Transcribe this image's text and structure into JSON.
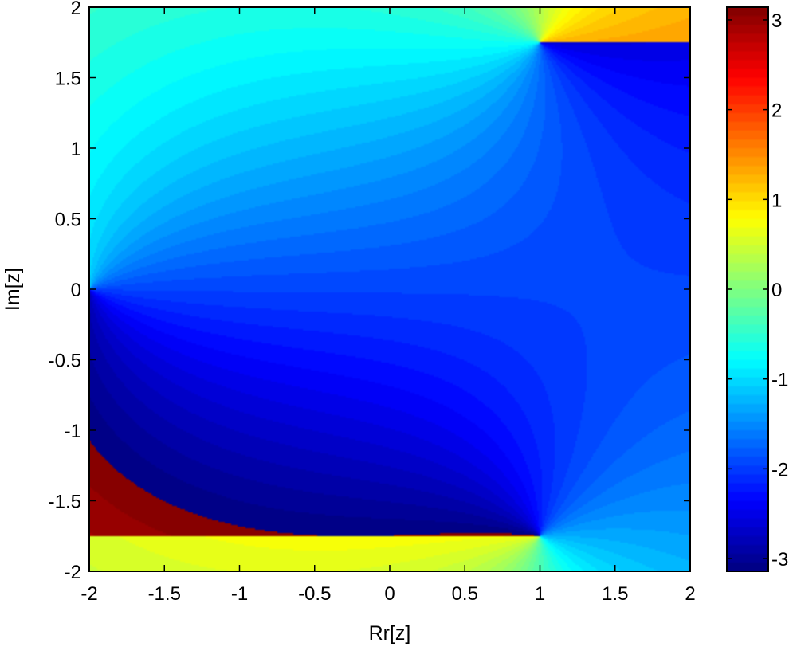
{
  "chart_data": {
    "type": "heatmap",
    "title": "",
    "xlabel": "Rr[z]",
    "ylabel": "Im[z]",
    "xlim": [
      -2,
      2
    ],
    "ylim": [
      -2,
      2
    ],
    "x_ticks": [
      -2,
      -1.5,
      -1,
      -0.5,
      0,
      0.5,
      1,
      1.5,
      2
    ],
    "x_tick_labels": [
      "-2",
      "-1.5",
      "-1",
      "-0.5",
      "0",
      "0.5",
      "1",
      "1.5",
      "2"
    ],
    "y_ticks": [
      -2,
      -1.5,
      -1,
      -0.5,
      0,
      0.5,
      1,
      1.5,
      2
    ],
    "y_tick_labels": [
      "-2",
      "-1.5",
      "-1",
      "-0.5",
      "0",
      "0.5",
      "1",
      "1.5",
      "2"
    ],
    "colorbar": {
      "range": [
        -3.1416,
        3.1416
      ],
      "ticks": [
        -3,
        -2,
        -1,
        0,
        1,
        2,
        3
      ],
      "tick_labels": [
        "-3",
        "-2",
        "-1",
        "0",
        "1",
        "2",
        "3"
      ],
      "colormap": "jet",
      "levels": 64
    },
    "plotted_quantity": "phase (arg) of a complex function over the z-plane",
    "branch_points": [
      {
        "re": -2.0,
        "im": 0.0
      },
      {
        "re": 1.0,
        "im": 1.75
      },
      {
        "re": 1.0,
        "im": -1.75
      }
    ],
    "grid": false
  }
}
